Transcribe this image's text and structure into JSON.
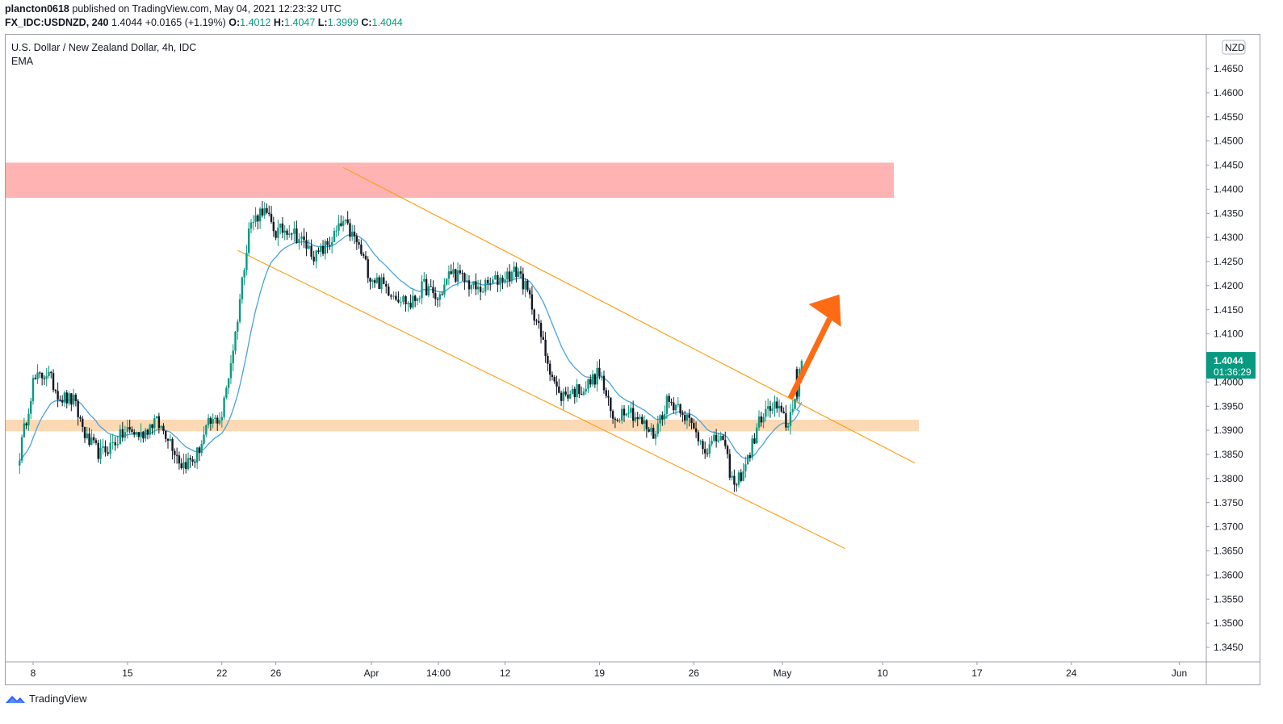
{
  "header": {
    "author": "plancton0618",
    "published_text": "published on TradingView.com, May 04, 2021 12:23:32 UTC",
    "symbol": "FX_IDC:USDNZD, 240",
    "last": "1.4044",
    "change": "+0.0165 (+1.19%)",
    "o_label": "O:",
    "o_value": "1.4012",
    "h_label": "H:",
    "h_value": "1.4047",
    "l_label": "L:",
    "l_value": "1.3999",
    "c_label": "C:",
    "c_value": "1.4044"
  },
  "legend": {
    "title": "U.S. Dollar / New Zealand Dollar, 4h, IDC",
    "indicator": "EMA"
  },
  "footer": {
    "brand": "TradingView"
  },
  "price_axis": {
    "currency": "NZD",
    "ticks": [
      "1.3450",
      "1.3500",
      "1.3550",
      "1.3600",
      "1.3650",
      "1.3700",
      "1.3750",
      "1.3800",
      "1.3850",
      "1.3900",
      "1.3950",
      "1.4000",
      "1.4050",
      "1.4100",
      "1.4150",
      "1.4200",
      "1.4250",
      "1.4300",
      "1.4350",
      "1.4400",
      "1.4450",
      "1.4500",
      "1.4550",
      "1.4600",
      "1.4650"
    ],
    "last_price_label": "1.4044",
    "countdown_label": "01:36:29"
  },
  "time_axis": {
    "labels": [
      "8",
      "15",
      "22",
      "26",
      "Apr",
      "14:00",
      "12",
      "19",
      "26",
      "May",
      "10",
      "17",
      "24",
      "Jun"
    ]
  },
  "colors": {
    "bull": "#089981",
    "bear": "#131722",
    "ema": "#4aa3df",
    "channel": "#ff9f1a",
    "resistance_zone": "#ffb3b3",
    "support_zone": "#fcd9b5",
    "arrow": "#ff6a14",
    "price_label_bg": "#089981"
  },
  "chart_data": {
    "type": "candlestick",
    "symbol": "FX_IDC:USDNZD",
    "timeframe": "4h",
    "ylim": [
      1.342,
      1.47
    ],
    "x_range": [
      "2021-03-07",
      "2021-06-01"
    ],
    "grid": false,
    "close_path": [
      [
        "2021-03-07",
        1.385
      ],
      [
        "2021-03-08",
        1.4
      ],
      [
        "2021-03-09",
        1.402
      ],
      [
        "2021-03-10",
        1.397
      ],
      [
        "2021-03-11",
        1.396
      ],
      [
        "2021-03-12",
        1.388
      ],
      [
        "2021-03-13",
        1.385
      ],
      [
        "2021-03-15",
        1.39
      ],
      [
        "2021-03-16",
        1.389
      ],
      [
        "2021-03-17",
        1.392
      ],
      [
        "2021-03-18",
        1.389
      ],
      [
        "2021-03-19",
        1.383
      ],
      [
        "2021-03-20",
        1.384
      ],
      [
        "2021-03-21",
        1.391
      ],
      [
        "2021-03-22",
        1.393
      ],
      [
        "2021-03-23",
        1.41
      ],
      [
        "2021-03-24",
        1.432
      ],
      [
        "2021-03-25",
        1.436
      ],
      [
        "2021-03-26",
        1.431
      ],
      [
        "2021-03-27",
        1.432
      ],
      [
        "2021-03-29",
        1.426
      ],
      [
        "2021-03-30",
        1.429
      ],
      [
        "2021-03-31",
        1.433
      ],
      [
        "2021-04-01",
        1.429
      ],
      [
        "2021-04-02",
        1.422
      ],
      [
        "2021-04-03",
        1.42
      ],
      [
        "2021-04-05",
        1.416
      ],
      [
        "2021-04-06",
        1.42
      ],
      [
        "2021-04-07",
        1.417
      ],
      [
        "2021-04-08",
        1.423
      ],
      [
        "2021-04-09",
        1.421
      ],
      [
        "2021-04-10",
        1.419
      ],
      [
        "2021-04-12",
        1.422
      ],
      [
        "2021-04-13",
        1.423
      ],
      [
        "2021-04-14",
        1.416
      ],
      [
        "2021-04-15",
        1.406
      ],
      [
        "2021-04-16",
        1.397
      ],
      [
        "2021-04-17",
        1.398
      ],
      [
        "2021-04-18",
        1.399
      ],
      [
        "2021-04-19",
        1.402
      ],
      [
        "2021-04-20",
        1.392
      ],
      [
        "2021-04-21",
        1.395
      ],
      [
        "2021-04-22",
        1.392
      ],
      [
        "2021-04-23",
        1.389
      ],
      [
        "2021-04-24",
        1.396
      ],
      [
        "2021-04-25",
        1.395
      ],
      [
        "2021-04-26",
        1.39
      ],
      [
        "2021-04-27",
        1.386
      ],
      [
        "2021-04-28",
        1.389
      ],
      [
        "2021-04-29",
        1.378
      ],
      [
        "2021-04-30",
        1.384
      ],
      [
        "2021-05-01",
        1.393
      ],
      [
        "2021-05-02",
        1.395
      ],
      [
        "2021-05-03",
        1.391
      ],
      [
        "2021-05-04",
        1.4044
      ]
    ],
    "last_candle": {
      "open": 1.4012,
      "high": 1.4047,
      "low": 1.3999,
      "close": 1.4044
    },
    "annotations": {
      "resistance_zone": [
        1.4382,
        1.4455
      ],
      "support_zone": [
        1.3898,
        1.3922
      ],
      "channel_upper": [
        [
          "2021-03-31",
          1.4445
        ],
        [
          "2021-05-10",
          1.3832
        ]
      ],
      "channel_lower": [
        [
          "2021-03-23",
          1.4273
        ],
        [
          "2021-05-06",
          1.3655
        ]
      ],
      "arrow": [
        [
          "2021-05-04",
          1.398
        ],
        [
          "2021-05-05",
          1.419
        ]
      ]
    }
  }
}
